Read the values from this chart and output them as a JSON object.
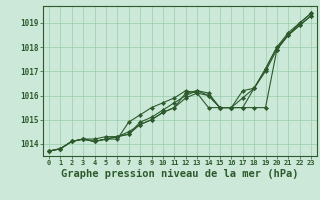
{
  "background_color": "#cce8d8",
  "grid_color": "#99ccaa",
  "line_color": "#2d5a2d",
  "marker_color": "#2d5a2d",
  "xlabel": "Graphe pression niveau de la mer (hPa)",
  "xlabel_fontsize": 7.5,
  "ylim": [
    1013.5,
    1019.7
  ],
  "xlim": [
    -0.5,
    23.5
  ],
  "yticks": [
    1014,
    1015,
    1016,
    1017,
    1018,
    1019
  ],
  "xticks": [
    0,
    1,
    2,
    3,
    4,
    5,
    6,
    7,
    8,
    9,
    10,
    11,
    12,
    13,
    14,
    15,
    16,
    17,
    18,
    19,
    20,
    21,
    22,
    23
  ],
  "series1": [
    1013.7,
    1013.8,
    1014.1,
    1014.2,
    1014.1,
    1014.2,
    1014.3,
    1014.4,
    1014.8,
    1015.0,
    1015.3,
    1015.5,
    1016.1,
    1016.2,
    1016.0,
    1015.5,
    1015.5,
    1015.5,
    1015.5,
    1015.5,
    1017.9,
    1018.5,
    1019.0,
    1019.4
  ],
  "series2": [
    1013.7,
    1013.8,
    1014.1,
    1014.2,
    1014.1,
    1014.2,
    1014.3,
    1014.4,
    1014.9,
    1015.1,
    1015.4,
    1015.7,
    1016.0,
    1016.2,
    1016.1,
    1015.5,
    1015.5,
    1015.9,
    1016.3,
    1017.1,
    1018.0,
    1018.6,
    1019.0,
    1019.4
  ],
  "series3": [
    1013.7,
    1013.8,
    1014.1,
    1014.2,
    1014.2,
    1014.3,
    1014.3,
    1014.5,
    1014.8,
    1015.0,
    1015.3,
    1015.5,
    1015.9,
    1016.1,
    1016.0,
    1015.5,
    1015.5,
    1016.2,
    1016.3,
    1017.0,
    1017.9,
    1018.5,
    1018.9,
    1019.3
  ],
  "series4": [
    1013.7,
    1013.8,
    1014.1,
    1014.2,
    1014.1,
    1014.2,
    1014.2,
    1014.9,
    1015.2,
    1015.5,
    1015.7,
    1015.9,
    1016.2,
    1016.1,
    1015.5,
    1015.5,
    1015.5,
    1015.5,
    1016.3,
    1017.1,
    1018.0,
    1018.5,
    1018.9,
    1019.3
  ]
}
